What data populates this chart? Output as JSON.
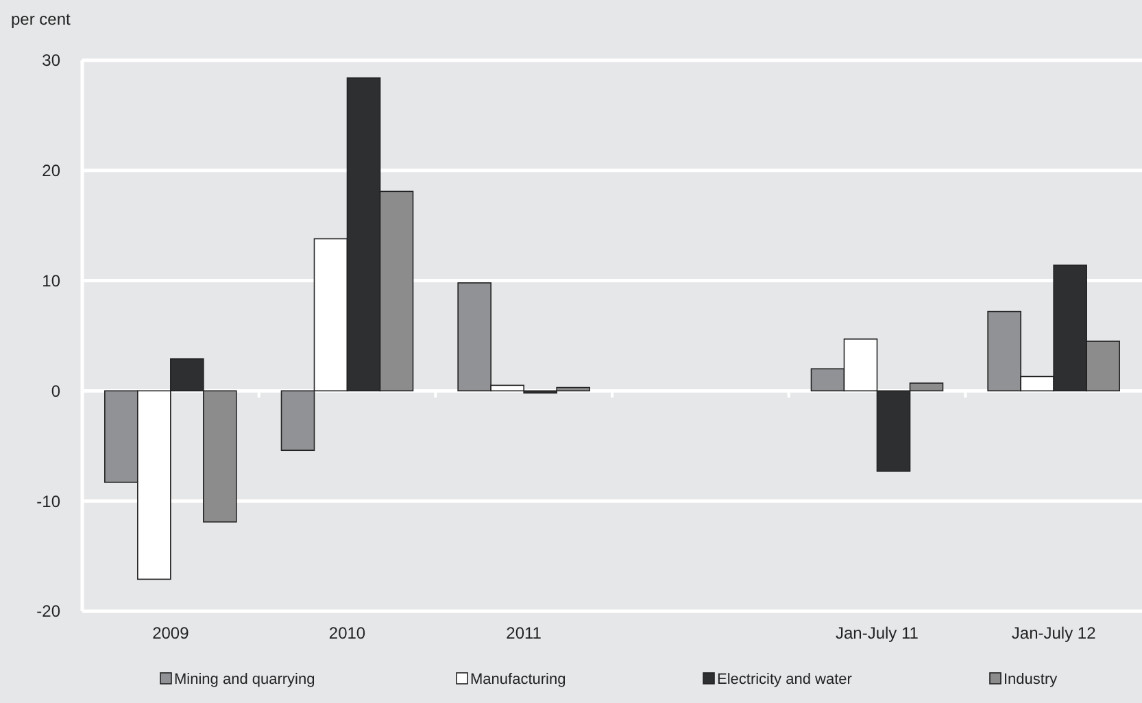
{
  "chart_data": {
    "type": "bar",
    "ylabel": "per cent",
    "categories": [
      "2009",
      "2010",
      "2011",
      null,
      "Jan-July 11",
      "Jan-July 12"
    ],
    "series": [
      {
        "name": "Mining and quarrying",
        "color": "#909296",
        "values": [
          -8.3,
          -5.4,
          9.8,
          null,
          2.0,
          7.2
        ]
      },
      {
        "name": "Manufacturing",
        "color": "#ffffff",
        "values": [
          -17.1,
          13.8,
          0.5,
          null,
          4.7,
          1.3
        ]
      },
      {
        "name": "Electricity and water",
        "color": "#2e2f31",
        "values": [
          2.9,
          28.4,
          -0.2,
          null,
          -7.3,
          11.4
        ]
      },
      {
        "name": "Industry",
        "color": "#8c8c8c",
        "values": [
          -11.9,
          18.1,
          0.3,
          null,
          0.7,
          4.5
        ]
      }
    ],
    "ylim": [
      -20,
      30
    ],
    "yticks": [
      -20,
      -10,
      0,
      10,
      20,
      30
    ],
    "grid": "y",
    "legend": "bottom"
  }
}
